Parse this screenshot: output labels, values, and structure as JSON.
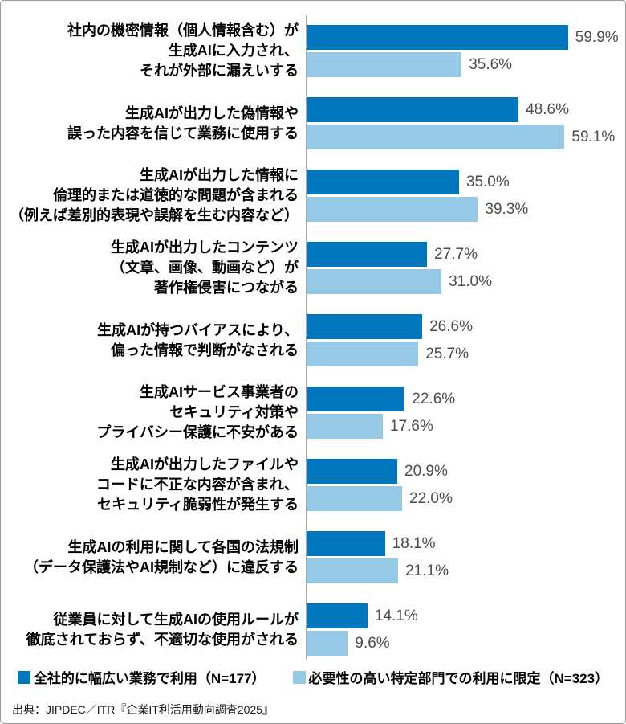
{
  "chart_data": {
    "type": "bar",
    "orientation": "horizontal",
    "title": "",
    "xlabel": "",
    "ylabel": "",
    "xlim": [
      0,
      70
    ],
    "value_suffix": "%",
    "grid": false,
    "legend_position": "bottom",
    "categories": [
      [
        "社内の機密情報（個人情報含む）が",
        "生成AIに入力され、",
        "それが外部に漏えいする"
      ],
      [
        "生成AIが出力した偽情報や",
        "誤った内容を信じて業務に使用する"
      ],
      [
        "生成AIが出力した情報に",
        "倫理的または道徳的な問題が含まれる",
        "（例えば差別的表現や誤解を生む内容など）"
      ],
      [
        "生成AIが出力したコンテンツ",
        "（文章、画像、動画など）が",
        "著作権侵害につながる"
      ],
      [
        "生成AIが持つバイアスにより、",
        "偏った情報で判断がなされる"
      ],
      [
        "生成AIサービス事業者の",
        "セキュリティ対策や",
        "プライバシー保護に不安がある"
      ],
      [
        "生成AIが出力したファイルや",
        "コードに不正な内容が含まれ、",
        "セキュリティ脆弱性が発生する"
      ],
      [
        "生成AIの利用に関して各国の法規制",
        "（データ保護法やAI規制など）に違反する"
      ],
      [
        "従業員に対して生成AIの使用ルールが",
        "徹底されておらず、不適切な使用がされる"
      ]
    ],
    "series": [
      {
        "name": "全社的に幅広い業務で利用（N=177）",
        "color": "#0077bc",
        "values": [
          59.9,
          48.6,
          35.0,
          27.7,
          26.6,
          22.6,
          20.9,
          18.1,
          14.1
        ]
      },
      {
        "name": "必要性の高い特定部門での利用に限定（N=323）",
        "color": "#96c9e6",
        "values": [
          35.6,
          59.1,
          39.3,
          31.0,
          25.7,
          17.6,
          22.0,
          21.1,
          9.6
        ]
      }
    ]
  },
  "source": "出典：JIPDEC／ITR『企業IT利活用動向調査2025』"
}
